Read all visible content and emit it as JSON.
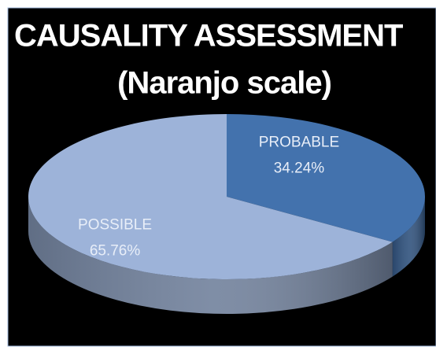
{
  "chart_data": {
    "type": "pie3d",
    "title": "CAUSALITY ASSESSMENT",
    "subtitle": "(Naranjo scale)",
    "categories": [
      "PROBABLE",
      "POSSIBLE"
    ],
    "values": [
      34.24,
      65.76
    ],
    "value_labels": [
      "34.24%",
      "65.76%"
    ],
    "colors": [
      "#4372ad",
      "#9db3d9"
    ]
  }
}
